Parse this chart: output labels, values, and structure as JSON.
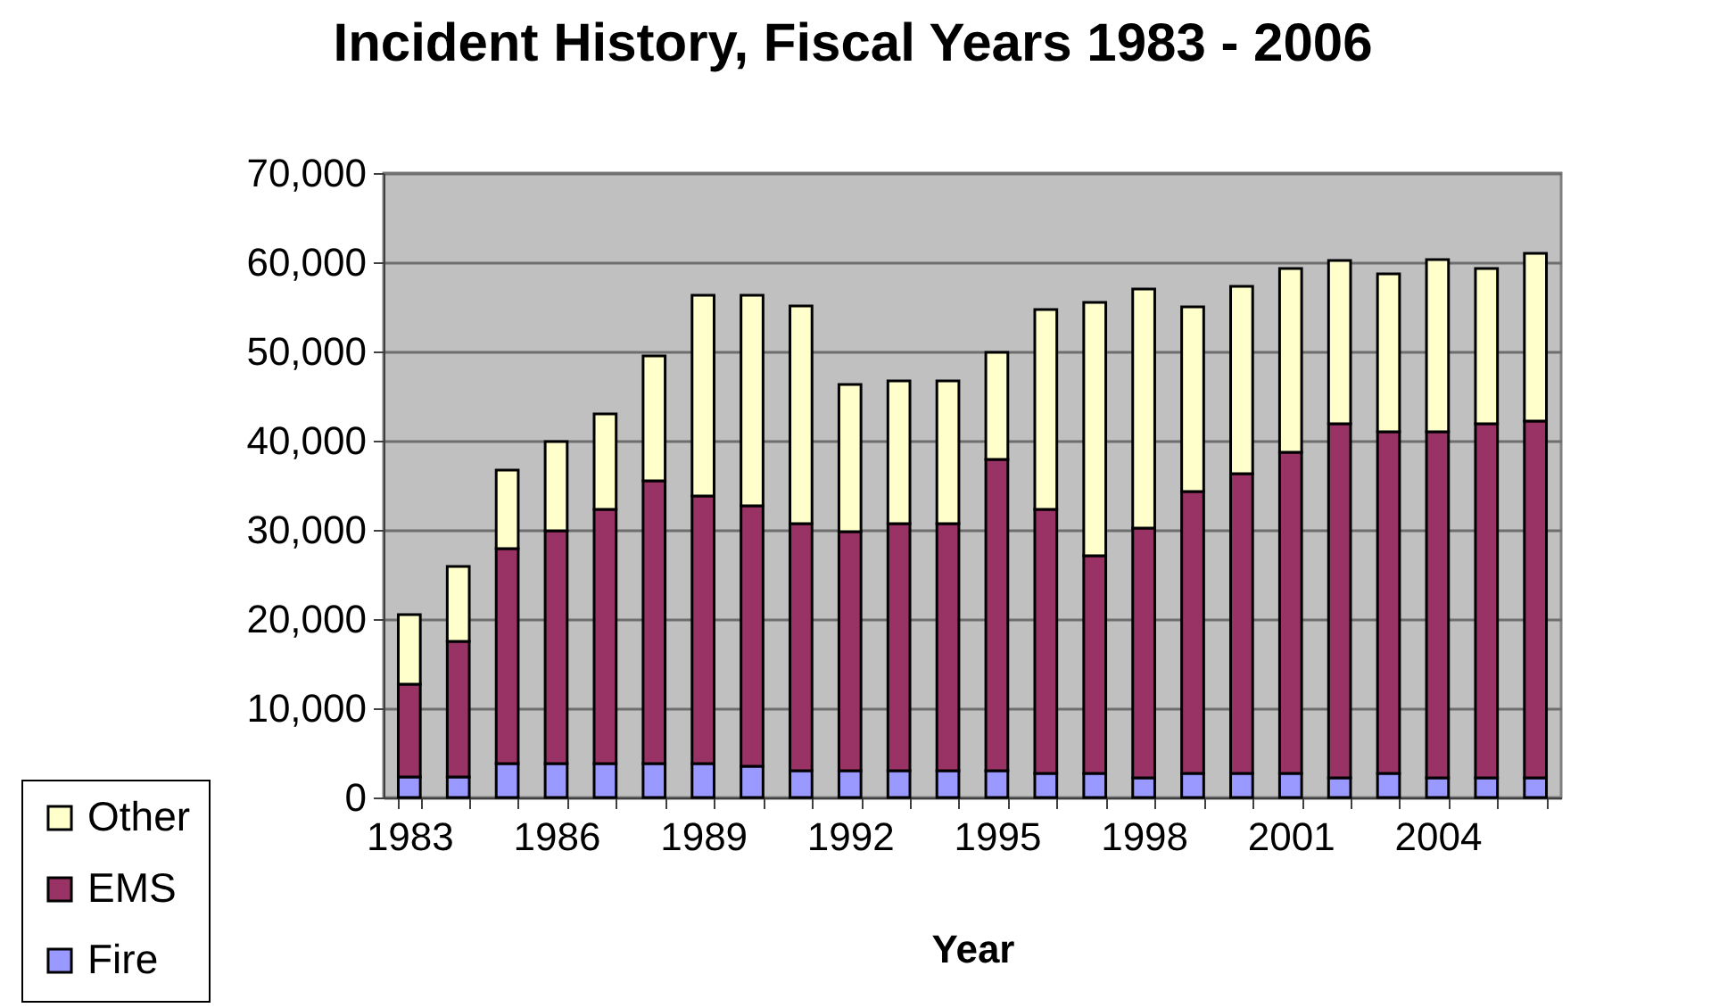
{
  "chart_data": {
    "type": "bar",
    "title": "Incident History, Fiscal Years 1983 - 2006",
    "xlabel": "Year",
    "categories": [
      "1983",
      null,
      null,
      "1986",
      null,
      null,
      "1989",
      null,
      null,
      "1992",
      null,
      null,
      "1995",
      null,
      null,
      "1998",
      null,
      null,
      "2001",
      null,
      null,
      "2004",
      null,
      null
    ],
    "series": [
      {
        "name": "Fire",
        "color": "#9999ff",
        "values": [
          2300,
          2300,
          3800,
          3800,
          3800,
          3800,
          3800,
          3500,
          3000,
          3000,
          3000,
          3000,
          3000,
          2700,
          2700,
          2200,
          2700,
          2700,
          2700,
          2200,
          2700,
          2200,
          2200,
          2200
        ]
      },
      {
        "name": "EMS",
        "color": "#993366",
        "values": [
          10400,
          15200,
          24100,
          26100,
          28500,
          31700,
          30000,
          29200,
          27700,
          26800,
          27700,
          27700,
          34900,
          29600,
          24400,
          28000,
          31600,
          33600,
          36000,
          39700,
          38300,
          38800,
          39700,
          40000
        ]
      },
      {
        "name": "Other",
        "color": "#ffffcc",
        "values": [
          7800,
          8400,
          8800,
          10000,
          10700,
          14000,
          22500,
          23600,
          24400,
          16500,
          16000,
          16000,
          12000,
          22400,
          28400,
          26800,
          20700,
          21000,
          20600,
          18300,
          17700,
          19300,
          17400,
          18800
        ]
      }
    ],
    "stacked": true,
    "ylim": [
      0,
      70000
    ],
    "yticks": [
      {
        "value": 0,
        "label": "0"
      },
      {
        "value": 10000,
        "label": "10,000"
      },
      {
        "value": 20000,
        "label": "20,000"
      },
      {
        "value": 30000,
        "label": "30,000"
      },
      {
        "value": 40000,
        "label": "40,000"
      },
      {
        "value": 50000,
        "label": "50,000"
      },
      {
        "value": 60000,
        "label": "60,000"
      },
      {
        "value": 70000,
        "label": "70,000"
      }
    ],
    "grid": "y",
    "legend": "bottom left"
  }
}
